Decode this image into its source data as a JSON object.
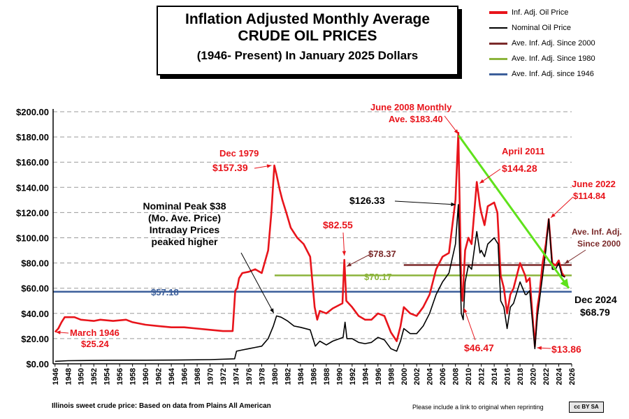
{
  "title": {
    "line1": "Inflation Adjusted Monthly Average",
    "line2": "CRUDE OIL PRICES",
    "line3": "(1946- Present) In January 2025 Dollars"
  },
  "legend": [
    {
      "label": "Inf. Adj. Oil Price",
      "color": "#e8141b"
    },
    {
      "label": "Nominal Oil Price",
      "color": "#000000"
    },
    {
      "label": "Ave. Inf. Adj. Since 2000",
      "color": "#7b2a2a"
    },
    {
      "label": "Ave. Inf. Adj. Since 1980",
      "color": "#8cb43c"
    },
    {
      "label": "Ave. Inf. Adj. since 1946",
      "color": "#3c5f9a"
    }
  ],
  "footer": {
    "source": "Illinois sweet crude price: Based on data from Plains All American",
    "notice": "Please include a link to original when reprinting",
    "badge": "cc BY SA"
  },
  "chart_data": {
    "type": "line",
    "ylim": [
      0,
      200
    ],
    "xlim": [
      1945.7,
      2026
    ],
    "y_ticks": [
      {
        "value": 0,
        "label": "$0.00"
      },
      {
        "value": 20,
        "label": "$20.00"
      },
      {
        "value": 40,
        "label": "$40.00"
      },
      {
        "value": 60,
        "label": "$60.00"
      },
      {
        "value": 80,
        "label": "$80.00"
      },
      {
        "value": 100,
        "label": "$100.00"
      },
      {
        "value": 120,
        "label": "$120.00"
      },
      {
        "value": 140,
        "label": "$140.00"
      },
      {
        "value": 160,
        "label": "$160.00"
      },
      {
        "value": 180,
        "label": "$180.00"
      },
      {
        "value": 200,
        "label": "$200.00"
      }
    ],
    "x_ticks": [
      "1946",
      "1948",
      "1950",
      "1952",
      "1954",
      "1956",
      "1958",
      "1960",
      "1962",
      "1964",
      "1966",
      "1968",
      "1970",
      "1972",
      "1974",
      "1976",
      "1978",
      "1980",
      "1982",
      "1984",
      "1986",
      "1988",
      "1990",
      "1992",
      "1994",
      "1996",
      "1998",
      "2000",
      "2002",
      "2004",
      "2006",
      "2008",
      "2010",
      "2012",
      "2014",
      "2016",
      "2018",
      "2020",
      "2022",
      "2024",
      "2026"
    ],
    "grid": true,
    "series": [
      {
        "name": "Inf. Adj. Oil Price",
        "color": "#e8141b",
        "points": [
          [
            1946.0,
            25.24
          ],
          [
            1946.5,
            28
          ],
          [
            1947.0,
            33
          ],
          [
            1947.5,
            37
          ],
          [
            1949,
            37
          ],
          [
            1950,
            35
          ],
          [
            1952,
            34
          ],
          [
            1953,
            35
          ],
          [
            1955,
            34
          ],
          [
            1957,
            35
          ],
          [
            1958,
            33
          ],
          [
            1960,
            31
          ],
          [
            1962,
            30
          ],
          [
            1964,
            29
          ],
          [
            1966,
            29
          ],
          [
            1968,
            28
          ],
          [
            1970,
            27
          ],
          [
            1972,
            26
          ],
          [
            1973.5,
            26
          ],
          [
            1973.9,
            58
          ],
          [
            1974.2,
            60
          ],
          [
            1974.5,
            68
          ],
          [
            1975,
            72
          ],
          [
            1976,
            73
          ],
          [
            1977,
            75
          ],
          [
            1978,
            72
          ],
          [
            1979,
            90
          ],
          [
            1979.5,
            120
          ],
          [
            1979.95,
            157.39
          ],
          [
            1980.3,
            150
          ],
          [
            1980.8,
            138
          ],
          [
            1981.2,
            130
          ],
          [
            1981.8,
            120
          ],
          [
            1982.5,
            108
          ],
          [
            1983.5,
            100
          ],
          [
            1984.5,
            95
          ],
          [
            1985.5,
            85
          ],
          [
            1986.2,
            45
          ],
          [
            1986.6,
            35
          ],
          [
            1987,
            42
          ],
          [
            1988,
            40
          ],
          [
            1989,
            44
          ],
          [
            1990.5,
            48
          ],
          [
            1990.8,
            82.55
          ],
          [
            1991.1,
            50
          ],
          [
            1992,
            45
          ],
          [
            1993,
            38
          ],
          [
            1994,
            35
          ],
          [
            1995,
            35
          ],
          [
            1996,
            40
          ],
          [
            1997,
            38
          ],
          [
            1998,
            25
          ],
          [
            1998.9,
            18
          ],
          [
            1999.5,
            30
          ],
          [
            2000,
            45
          ],
          [
            2001,
            40
          ],
          [
            2002,
            38
          ],
          [
            2003,
            45
          ],
          [
            2004,
            55
          ],
          [
            2005,
            75
          ],
          [
            2006,
            85
          ],
          [
            2007,
            88
          ],
          [
            2008.0,
            130
          ],
          [
            2008.45,
            183.4
          ],
          [
            2008.9,
            60
          ],
          [
            2009.1,
            50
          ],
          [
            2009.5,
            90
          ],
          [
            2010,
            100
          ],
          [
            2010.5,
            95
          ],
          [
            2011.3,
            144.28
          ],
          [
            2011.8,
            125
          ],
          [
            2012,
            120
          ],
          [
            2012.5,
            110
          ],
          [
            2013,
            125
          ],
          [
            2014,
            128
          ],
          [
            2014.5,
            120
          ],
          [
            2015,
            70
          ],
          [
            2015.5,
            60
          ],
          [
            2016,
            40
          ],
          [
            2016.5,
            55
          ],
          [
            2017,
            60
          ],
          [
            2018,
            80
          ],
          [
            2018.8,
            70
          ],
          [
            2019,
            65
          ],
          [
            2019.5,
            68
          ],
          [
            2020.3,
            13.86
          ],
          [
            2020.7,
            45
          ],
          [
            2021,
            55
          ],
          [
            2021.5,
            80
          ],
          [
            2022.0,
            95
          ],
          [
            2022.45,
            114.84
          ],
          [
            2022.9,
            85
          ],
          [
            2023,
            80
          ],
          [
            2023.5,
            78
          ],
          [
            2024,
            82
          ],
          [
            2024.5,
            72
          ],
          [
            2024.95,
            68.79
          ]
        ]
      },
      {
        "name": "Nominal Oil Price",
        "color": "#000000",
        "points": [
          [
            1946,
            2
          ],
          [
            1948,
            2.5
          ],
          [
            1950,
            2.6
          ],
          [
            1955,
            2.8
          ],
          [
            1960,
            2.9
          ],
          [
            1965,
            3
          ],
          [
            1970,
            3.3
          ],
          [
            1973.8,
            4
          ],
          [
            1974.1,
            10
          ],
          [
            1975,
            11
          ],
          [
            1976,
            12
          ],
          [
            1977,
            13
          ],
          [
            1978,
            14
          ],
          [
            1979,
            20
          ],
          [
            1979.8,
            30
          ],
          [
            1980.3,
            38
          ],
          [
            1981,
            37
          ],
          [
            1982,
            34
          ],
          [
            1983,
            30
          ],
          [
            1984,
            29
          ],
          [
            1985.5,
            27
          ],
          [
            1986.3,
            14
          ],
          [
            1987,
            18
          ],
          [
            1988,
            15
          ],
          [
            1989,
            18
          ],
          [
            1990.6,
            21
          ],
          [
            1990.9,
            33
          ],
          [
            1991.2,
            20
          ],
          [
            1992,
            20
          ],
          [
            1993,
            17
          ],
          [
            1994,
            16
          ],
          [
            1995,
            17
          ],
          [
            1996,
            21
          ],
          [
            1997,
            19
          ],
          [
            1998,
            12
          ],
          [
            1998.9,
            10
          ],
          [
            1999.5,
            18
          ],
          [
            2000,
            28
          ],
          [
            2001,
            24
          ],
          [
            2002,
            24
          ],
          [
            2003,
            30
          ],
          [
            2004,
            40
          ],
          [
            2005,
            55
          ],
          [
            2006,
            65
          ],
          [
            2007,
            72
          ],
          [
            2008.0,
            95
          ],
          [
            2008.45,
            126.33
          ],
          [
            2008.9,
            40
          ],
          [
            2009.2,
            35
          ],
          [
            2009.5,
            65
          ],
          [
            2010,
            78
          ],
          [
            2010.5,
            75
          ],
          [
            2011.3,
            105
          ],
          [
            2011.8,
            88
          ],
          [
            2012,
            90
          ],
          [
            2012.5,
            85
          ],
          [
            2013,
            95
          ],
          [
            2014,
            100
          ],
          [
            2014.6,
            95
          ],
          [
            2015,
            50
          ],
          [
            2015.5,
            45
          ],
          [
            2016,
            28
          ],
          [
            2016.5,
            45
          ],
          [
            2017,
            48
          ],
          [
            2018,
            65
          ],
          [
            2018.8,
            55
          ],
          [
            2019,
            55
          ],
          [
            2019.5,
            58
          ],
          [
            2020.3,
            12
          ],
          [
            2020.7,
            38
          ],
          [
            2021,
            50
          ],
          [
            2021.5,
            70
          ],
          [
            2022.0,
            90
          ],
          [
            2022.45,
            114.84
          ],
          [
            2022.9,
            82
          ],
          [
            2023,
            75
          ],
          [
            2023.5,
            75
          ],
          [
            2024,
            80
          ],
          [
            2024.5,
            70
          ],
          [
            2024.95,
            68.79
          ]
        ]
      }
    ],
    "averages": [
      {
        "name": "Ave. Inf. Adj. Since 2000",
        "value": 78.37,
        "label": "$78.37",
        "color": "#7b2a2a",
        "x_start": 2000
      },
      {
        "name": "Ave. Inf. Adj. Since 1980",
        "value": 70.17,
        "label": "$70.17",
        "color": "#8cb43c",
        "x_start": 1980
      },
      {
        "name": "Ave. Inf. Adj. since 1946",
        "value": 57.18,
        "label": "$57.18",
        "color": "#3c5f9a",
        "x_start": 1946
      }
    ],
    "annotations": [
      {
        "text": "March 1946",
        "value_text": "$25.24",
        "color": "#e8141b"
      },
      {
        "text": "Dec 1979",
        "value_text": "$157.39",
        "color": "#e8141b"
      },
      {
        "text": "Nominal Peak $38",
        "lines": [
          "Nominal Peak $38",
          "(Mo. Ave. Price)",
          "Intraday Prices",
          "peaked higher"
        ],
        "color": "#000000"
      },
      {
        "text": "$82.55",
        "color": "#e8141b"
      },
      {
        "text": "$126.33",
        "color": "#000000"
      },
      {
        "text": "June 2008 Monthly",
        "value_text": "Ave. $183.40",
        "color": "#e8141b"
      },
      {
        "text": "April 2011",
        "value_text": "$144.28",
        "color": "#e8141b"
      },
      {
        "text": "June 2022",
        "value_text": "$114.84",
        "color": "#e8141b"
      },
      {
        "text": "Ave. Inf. Adj.",
        "value_text": "Since 2000",
        "color": "#7b2a2a"
      },
      {
        "text": "$46.47",
        "color": "#e8141b"
      },
      {
        "text": "$13.86",
        "color": "#e8141b"
      },
      {
        "text": "Dec 2024",
        "value_text": "$68.79",
        "color": "#000000"
      }
    ],
    "trend_arrow": {
      "from": [
        2008.5,
        183.4
      ],
      "to": [
        2026,
        60
      ],
      "color": "#5fe21b"
    }
  }
}
